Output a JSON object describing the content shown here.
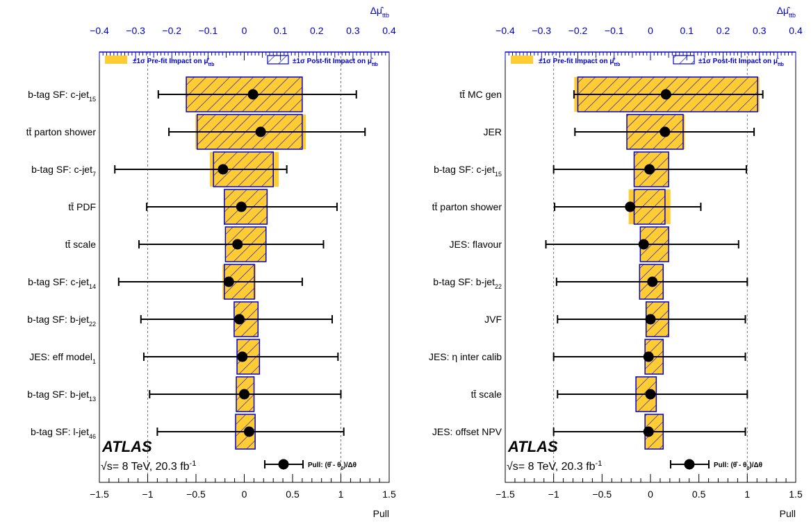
{
  "experiment": "ATLAS",
  "energy_label": "√s= 8 TeV, 20.3 fb",
  "energy_sup": "-1",
  "legend": {
    "prefit": "±1σ Pre-fit Impact on μ̂",
    "postfit": "±1σ Post-fit Impact on μ̂",
    "sub": "ttb",
    "pull": "Pull: (θ̂ - θ",
    "pull_sub": "0",
    "pull_end": ")/Δθ"
  },
  "colors": {
    "prefit_fill": "#ffcc33",
    "postfit_stroke": "#0000cc",
    "top_axis": "#0000cc"
  },
  "chart_data": [
    {
      "type": "bar",
      "orientation": "horizontal",
      "xlabel": "Pull",
      "x2label": "Δμ̂",
      "x2label_sub": "ttb",
      "xlim": [
        -1.5,
        1.5
      ],
      "x2lim": [
        -0.4,
        0.4
      ],
      "xticks": [
        "−1.5",
        "−1",
        "−0.5",
        "0",
        "0.5",
        "1",
        "1.5"
      ],
      "x2ticks": [
        "−0.4",
        "−0.3",
        "−0.2",
        "−0.1",
        "0",
        "0.1",
        "0.2",
        "0.3",
        "0.4"
      ],
      "grid": "dashed vertical lines at pull ±1",
      "rows": [
        {
          "label": "b-tag SF: c-jet",
          "sub": "15",
          "pull": 0.09,
          "err_lo": 0.98,
          "err_hi": 1.07,
          "prefit": [
            -0.16,
            0.16
          ],
          "postfit": [
            -0.16,
            0.16
          ]
        },
        {
          "label": "tt̄ parton shower",
          "sub": "",
          "pull": 0.17,
          "err_lo": 0.95,
          "err_hi": 1.08,
          "prefit": [
            -0.135,
            0.17
          ],
          "postfit": [
            -0.13,
            0.16
          ]
        },
        {
          "label": "b-tag SF: c-jet",
          "sub": "7",
          "pull": -0.22,
          "err_lo": 1.12,
          "err_hi": 0.66,
          "prefit": [
            -0.095,
            0.095
          ],
          "postfit": [
            -0.085,
            0.08
          ]
        },
        {
          "label": "tt̄ PDF",
          "sub": "",
          "pull": -0.03,
          "err_lo": 0.98,
          "err_hi": 0.99,
          "prefit": [
            -0.055,
            0.063
          ],
          "postfit": [
            -0.055,
            0.063
          ]
        },
        {
          "label": "tt̄ scale",
          "sub": "",
          "pull": -0.07,
          "err_lo": 1.02,
          "err_hi": 0.89,
          "prefit": [
            -0.052,
            0.06
          ],
          "postfit": [
            -0.052,
            0.06
          ]
        },
        {
          "label": "b-tag SF: c-jet",
          "sub": "14",
          "pull": -0.16,
          "err_lo": 1.14,
          "err_hi": 0.76,
          "prefit": [
            -0.06,
            0.032
          ],
          "postfit": [
            -0.055,
            0.028
          ]
        },
        {
          "label": "b-tag SF: b-jet",
          "sub": "22",
          "pull": -0.05,
          "err_lo": 1.02,
          "err_hi": 0.96,
          "prefit": [
            -0.028,
            0.038
          ],
          "postfit": [
            -0.028,
            0.038
          ]
        },
        {
          "label": "JES: eff model",
          "sub": "1",
          "pull": -0.02,
          "err_lo": 1.02,
          "err_hi": 0.99,
          "prefit": [
            -0.02,
            0.042
          ],
          "postfit": [
            -0.02,
            0.042
          ]
        },
        {
          "label": "b-tag SF: b-jet",
          "sub": "13",
          "pull": 0.0,
          "err_lo": 0.98,
          "err_hi": 1.0,
          "prefit": [
            -0.022,
            0.027
          ],
          "postfit": [
            -0.022,
            0.027
          ]
        },
        {
          "label": "b-tag SF: l-jet",
          "sub": "46",
          "pull": 0.05,
          "err_lo": 0.95,
          "err_hi": 0.98,
          "prefit": [
            -0.024,
            0.03
          ],
          "postfit": [
            -0.024,
            0.03
          ]
        }
      ]
    },
    {
      "type": "bar",
      "orientation": "horizontal",
      "xlabel": "Pull",
      "x2label": "Δμ̂",
      "x2label_sub": "ttb",
      "xlim": [
        -1.5,
        1.5
      ],
      "x2lim": [
        -0.4,
        0.4
      ],
      "xticks": [
        "−1.5",
        "−1",
        "−0.5",
        "0",
        "0.5",
        "1",
        "1.5"
      ],
      "x2ticks": [
        "−0.4",
        "−0.3",
        "−0.2",
        "−0.1",
        "0",
        "0.1",
        "0.2",
        "0.3",
        "0.4"
      ],
      "grid": "dashed vertical lines at pull ±1",
      "rows": [
        {
          "label": "tt̄ MC gen",
          "sub": "",
          "pull": 0.16,
          "err_lo": 0.95,
          "err_hi": 1.0,
          "prefit": [
            -0.21,
            0.3
          ],
          "postfit": [
            -0.2,
            0.295
          ]
        },
        {
          "label": "JER",
          "sub": "",
          "pull": 0.15,
          "err_lo": 0.93,
          "err_hi": 0.92,
          "prefit": [
            -0.065,
            0.095
          ],
          "postfit": [
            -0.065,
            0.09
          ]
        },
        {
          "label": "b-tag SF: c-jet",
          "sub": "15",
          "pull": -0.01,
          "err_lo": 0.99,
          "err_hi": 1.0,
          "prefit": [
            -0.045,
            0.05
          ],
          "postfit": [
            -0.045,
            0.05
          ]
        },
        {
          "label": "tt̄ parton shower",
          "sub": "",
          "pull": -0.21,
          "err_lo": 0.78,
          "err_hi": 0.73,
          "prefit": [
            -0.06,
            0.055
          ],
          "postfit": [
            -0.045,
            0.04
          ]
        },
        {
          "label": "JES: flavour",
          "sub": "",
          "pull": -0.07,
          "err_lo": 1.01,
          "err_hi": 0.98,
          "prefit": [
            -0.028,
            0.05
          ],
          "postfit": [
            -0.028,
            0.05
          ]
        },
        {
          "label": "b-tag SF: b-jet",
          "sub": "22",
          "pull": 0.02,
          "err_lo": 0.99,
          "err_hi": 0.98,
          "prefit": [
            -0.03,
            0.035
          ],
          "postfit": [
            -0.03,
            0.035
          ]
        },
        {
          "label": "JVF",
          "sub": "",
          "pull": 0.0,
          "err_lo": 0.96,
          "err_hi": 0.98,
          "prefit": [
            -0.012,
            0.05
          ],
          "postfit": [
            -0.012,
            0.05
          ]
        },
        {
          "label": "JES: η inter calib",
          "sub": "",
          "pull": -0.02,
          "err_lo": 0.98,
          "err_hi": 1.0,
          "prefit": [
            -0.015,
            0.035
          ],
          "postfit": [
            -0.015,
            0.035
          ]
        },
        {
          "label": "tt̄ scale",
          "sub": "",
          "pull": 0.0,
          "err_lo": 0.96,
          "err_hi": 1.0,
          "prefit": [
            -0.04,
            0.016
          ],
          "postfit": [
            -0.04,
            0.016
          ]
        },
        {
          "label": "JES: offset NPV",
          "sub": "",
          "pull": -0.02,
          "err_lo": 0.98,
          "err_hi": 1.0,
          "prefit": [
            -0.015,
            0.035
          ],
          "postfit": [
            -0.015,
            0.035
          ]
        }
      ]
    }
  ]
}
